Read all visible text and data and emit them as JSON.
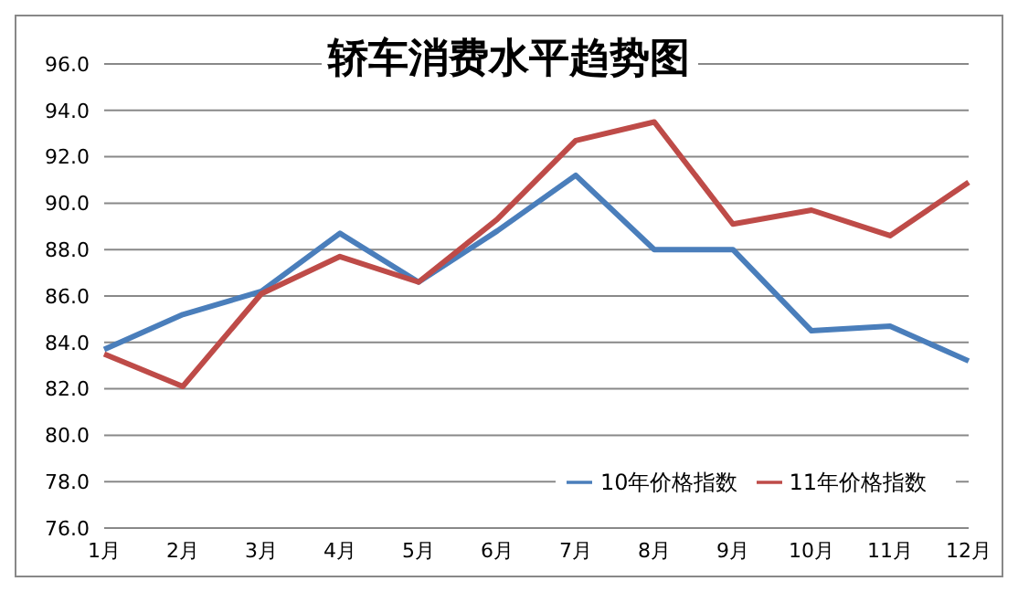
{
  "chart_data": {
    "type": "line",
    "title": "轿车消费水平趋势图",
    "categories": [
      "1月",
      "2月",
      "3月",
      "4月",
      "5月",
      "6月",
      "7月",
      "8月",
      "9月",
      "10月",
      "11月",
      "12月"
    ],
    "series": [
      {
        "name": "10年价格指数",
        "color": "#4a7ebb",
        "values": [
          83.7,
          85.2,
          86.2,
          88.7,
          86.6,
          88.8,
          91.2,
          88.0,
          88.0,
          84.5,
          84.7,
          83.2
        ]
      },
      {
        "name": "11年价格指数",
        "color": "#be4b48",
        "values": [
          83.5,
          82.1,
          86.1,
          87.7,
          86.6,
          89.3,
          92.7,
          93.5,
          89.1,
          89.7,
          88.6,
          90.9
        ]
      }
    ],
    "ylim": [
      76,
      96
    ],
    "yticks": [
      {
        "value": 76,
        "label": "76.0"
      },
      {
        "value": 78,
        "label": "78.0"
      },
      {
        "value": 80,
        "label": "80.0"
      },
      {
        "value": 82,
        "label": "82.0"
      },
      {
        "value": 84,
        "label": "84.0"
      },
      {
        "value": 86,
        "label": "86.0"
      },
      {
        "value": 88,
        "label": "88.0"
      },
      {
        "value": 90,
        "label": "90.0"
      },
      {
        "value": 92,
        "label": "92.0"
      },
      {
        "value": 94,
        "label": "94.0"
      },
      {
        "value": 96,
        "label": "96.0"
      }
    ],
    "grid": "y",
    "legend": "bottom right",
    "marker": "none",
    "line_style": "solid"
  }
}
